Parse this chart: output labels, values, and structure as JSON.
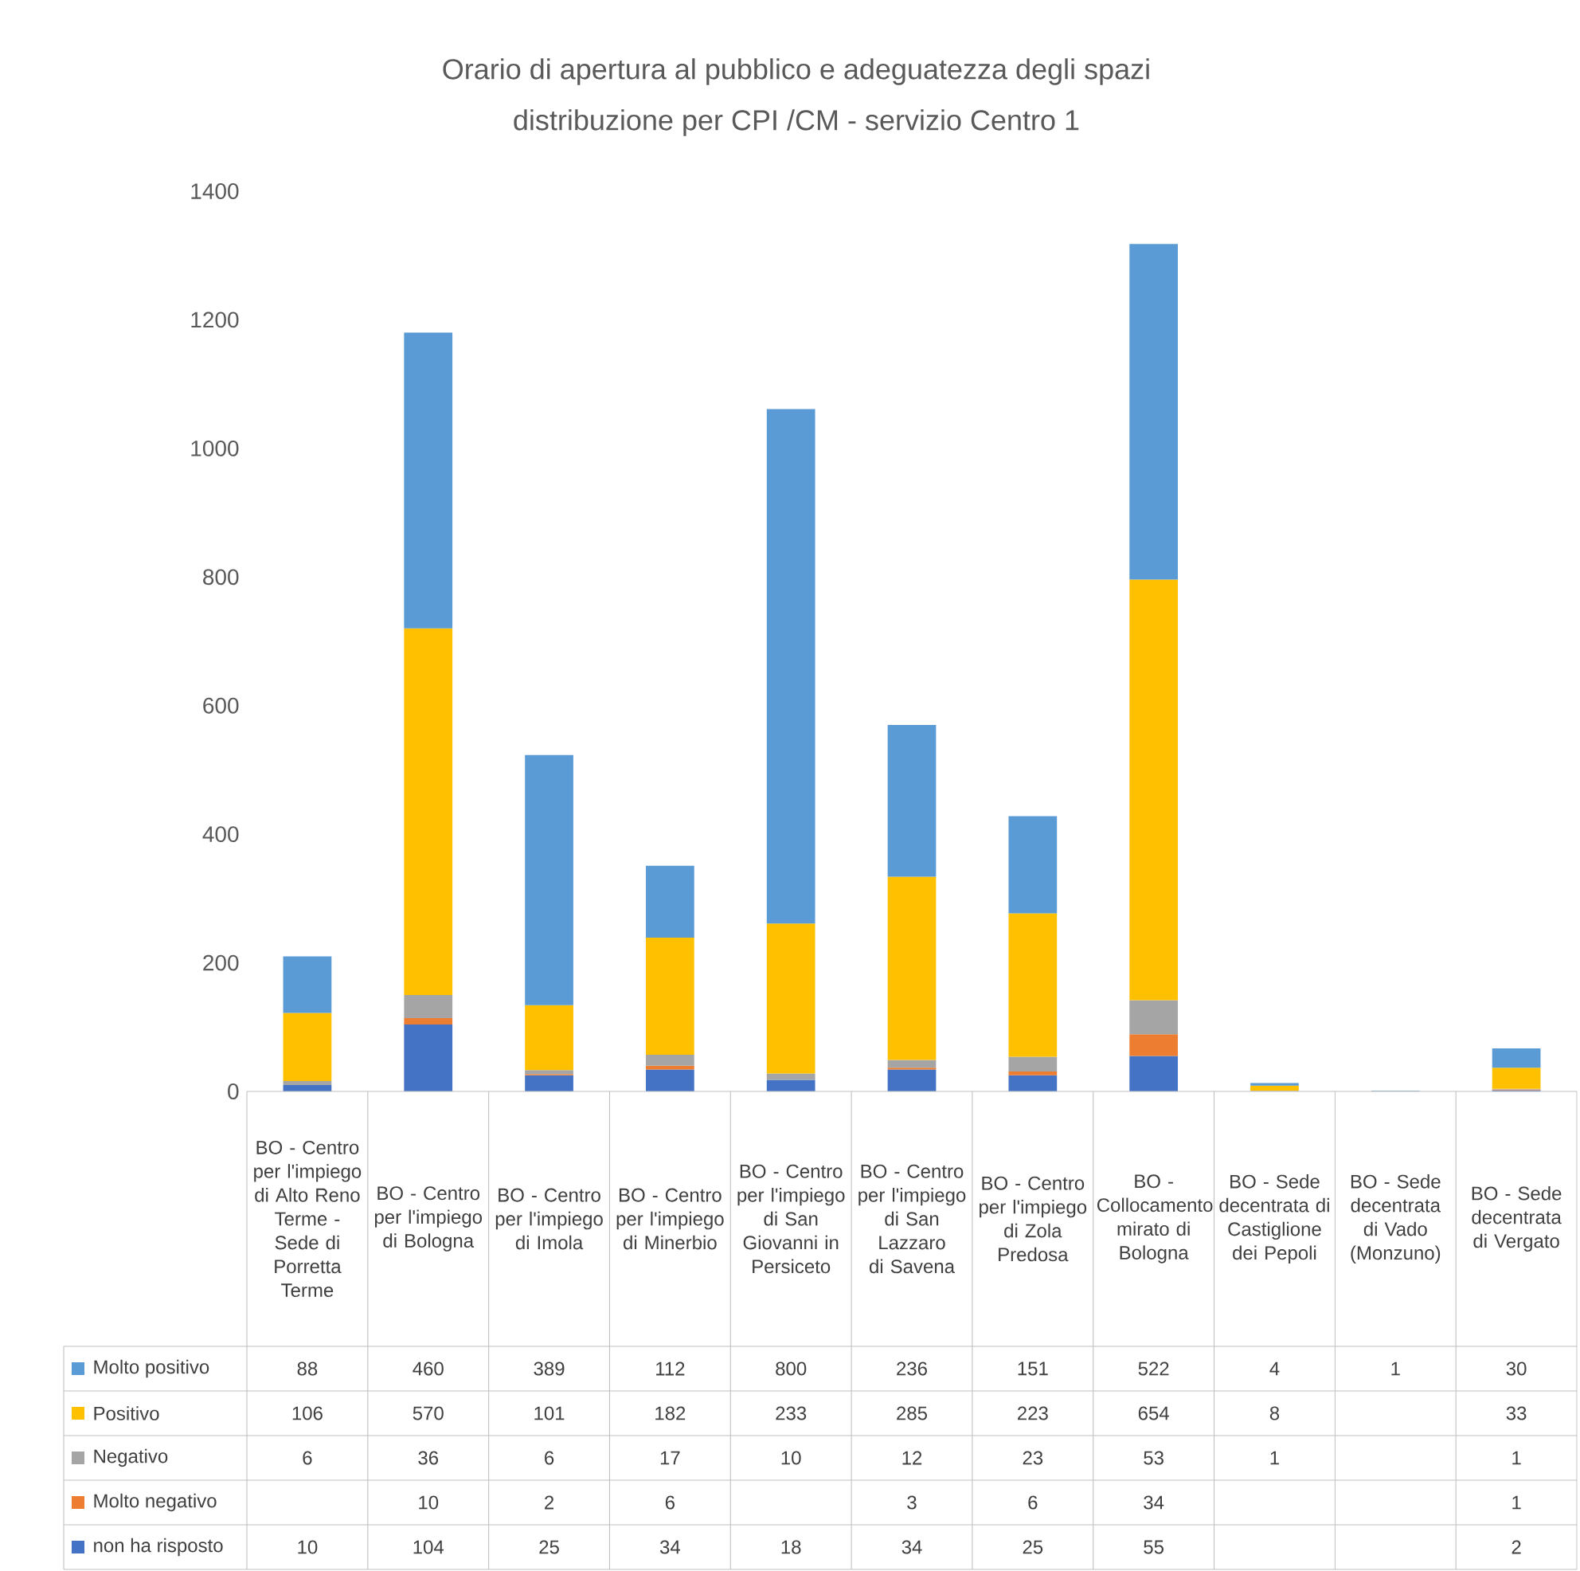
{
  "chart_data": {
    "type": "bar",
    "stacked": true,
    "title": "Orario di apertura al pubblico e adeguatezza degli spazi",
    "subtitle": "distribuzione per CPI /CM - servizio Centro 1",
    "categories": [
      "BO - Centro per l'impiego di Alto Reno Terme - Sede di Porretta Terme",
      "BO - Centro per l'impiego di Bologna",
      "BO - Centro per l'impiego di Imola",
      "BO - Centro per l'impiego di Minerbio",
      "BO - Centro per l'impiego di San Giovanni in Persiceto",
      "BO - Centro per l'impiego di San Lazzaro di Savena",
      "BO - Centro per l'impiego di Zola Predosa",
      "BO - Collocamento mirato di Bologna",
      "BO - Sede decentrata di Castiglione dei Pepoli",
      "BO - Sede decentrata di Vado (Monzuno)",
      "BO - Sede decentrata di Vergato"
    ],
    "series": [
      {
        "name": "non ha risposto",
        "color": "#4472c4",
        "values": [
          10,
          104,
          25,
          34,
          18,
          34,
          25,
          55,
          null,
          null,
          2
        ]
      },
      {
        "name": "Molto negativo",
        "color": "#ed7d31",
        "values": [
          null,
          10,
          2,
          6,
          null,
          3,
          6,
          34,
          null,
          null,
          1
        ]
      },
      {
        "name": "Negativo",
        "color": "#a5a5a5",
        "values": [
          6,
          36,
          6,
          17,
          10,
          12,
          23,
          53,
          1,
          null,
          1
        ]
      },
      {
        "name": "Positivo",
        "color": "#ffc000",
        "values": [
          106,
          570,
          101,
          182,
          233,
          285,
          223,
          654,
          8,
          null,
          33
        ]
      },
      {
        "name": "Molto positivo",
        "color": "#5b9bd5",
        "values": [
          88,
          460,
          389,
          112,
          800,
          236,
          151,
          522,
          4,
          1,
          30
        ]
      }
    ],
    "ylim": [
      0,
      1400
    ],
    "yticks": [
      0,
      200,
      400,
      600,
      800,
      1000,
      1200,
      1400
    ],
    "legend": "bottom",
    "data_labels": true
  }
}
